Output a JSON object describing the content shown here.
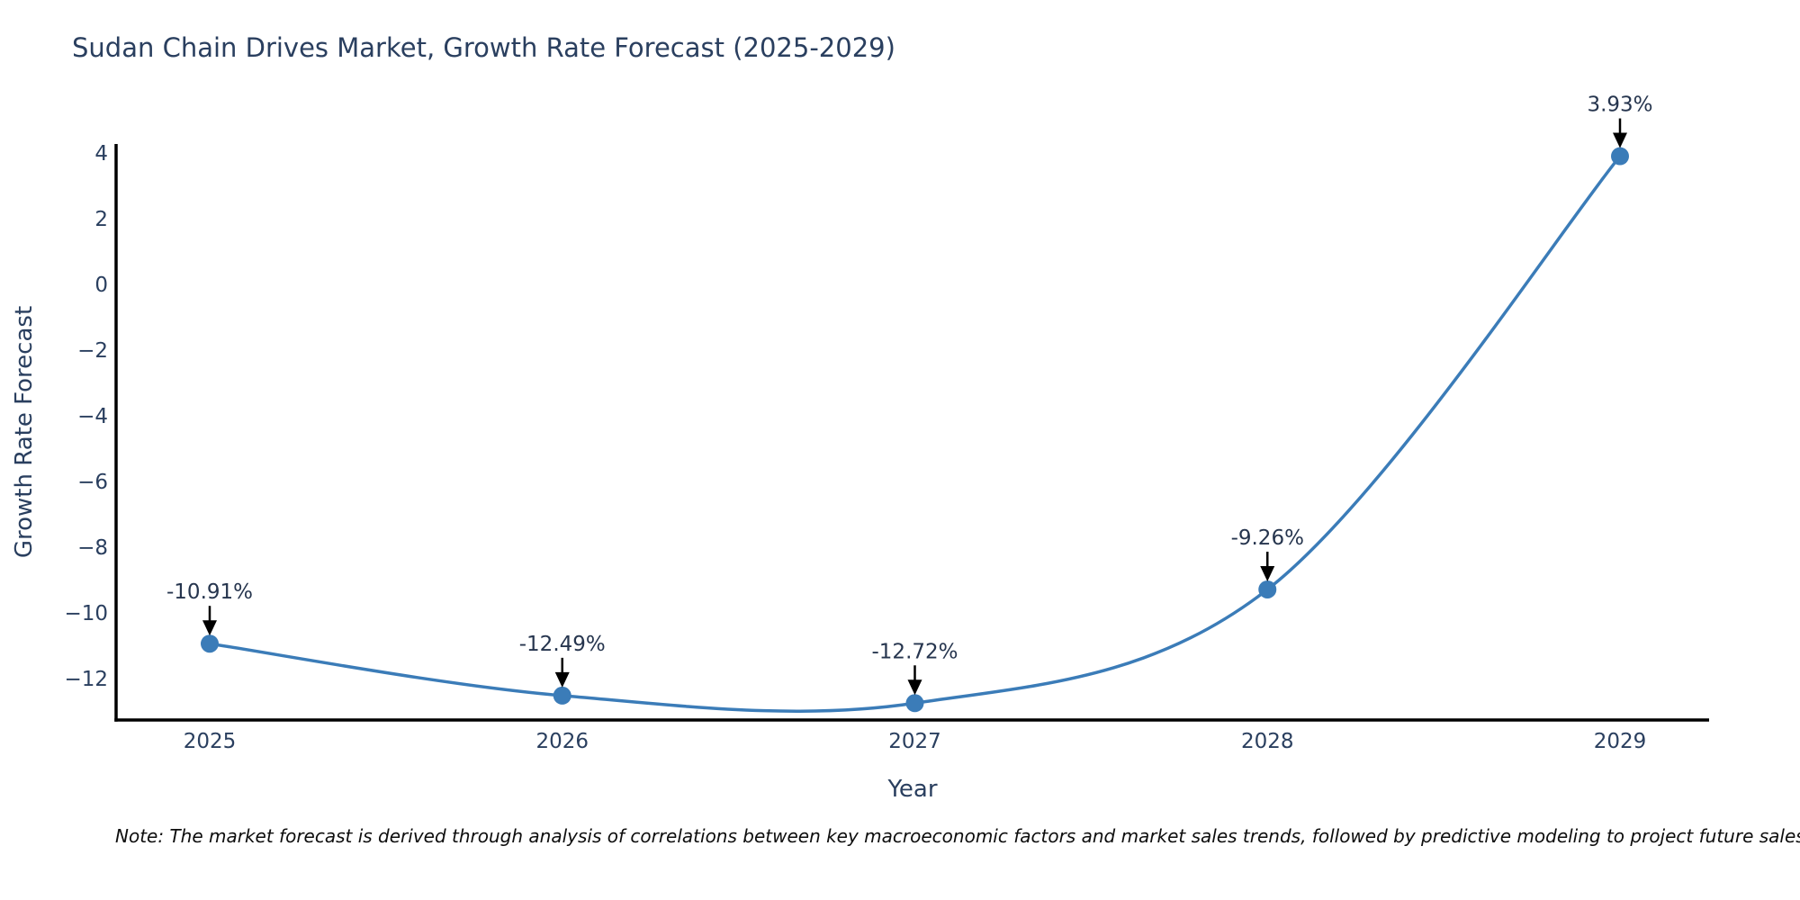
{
  "title": "Sudan Chain Drives Market, Growth Rate Forecast (2025-2029)",
  "note": "Note: The market forecast is derived through analysis of correlations between key macroeconomic factors and market sales trends, followed by predictive modeling to project future sales",
  "chart_data": {
    "type": "line",
    "line_shape": "spline",
    "grid": false,
    "legend_position": "none",
    "title": "Sudan Chain Drives Market, Growth Rate Forecast (2025-2029)",
    "xlabel": "Year",
    "ylabel": "Growth Rate Forecast",
    "categories": [
      "2025",
      "2026",
      "2027",
      "2028",
      "2029"
    ],
    "x": [
      2025,
      2026,
      2027,
      2028,
      2029
    ],
    "values": [
      -10.91,
      -12.49,
      -12.72,
      -9.26,
      3.93
    ],
    "point_labels": [
      "-10.91%",
      "-12.49%",
      "-12.72%",
      "-9.26%",
      "3.93%"
    ],
    "yticks": [
      4,
      2,
      0,
      -2,
      -4,
      -6,
      -8,
      -10,
      -12
    ],
    "ytick_labels": [
      "4",
      "2",
      "0",
      "−2",
      "−4",
      "−6",
      "−8",
      "−10",
      "−12"
    ],
    "ylim": [
      -13.3,
      4.3
    ],
    "colors": {
      "line": "#3b7cb8",
      "marker": "#3b7cb8",
      "axis": "#000000",
      "tick_text": "#2a3f5f",
      "annotation_text": "#26354e",
      "annotation_arrow": "#000000",
      "background": "#ffffff"
    }
  }
}
